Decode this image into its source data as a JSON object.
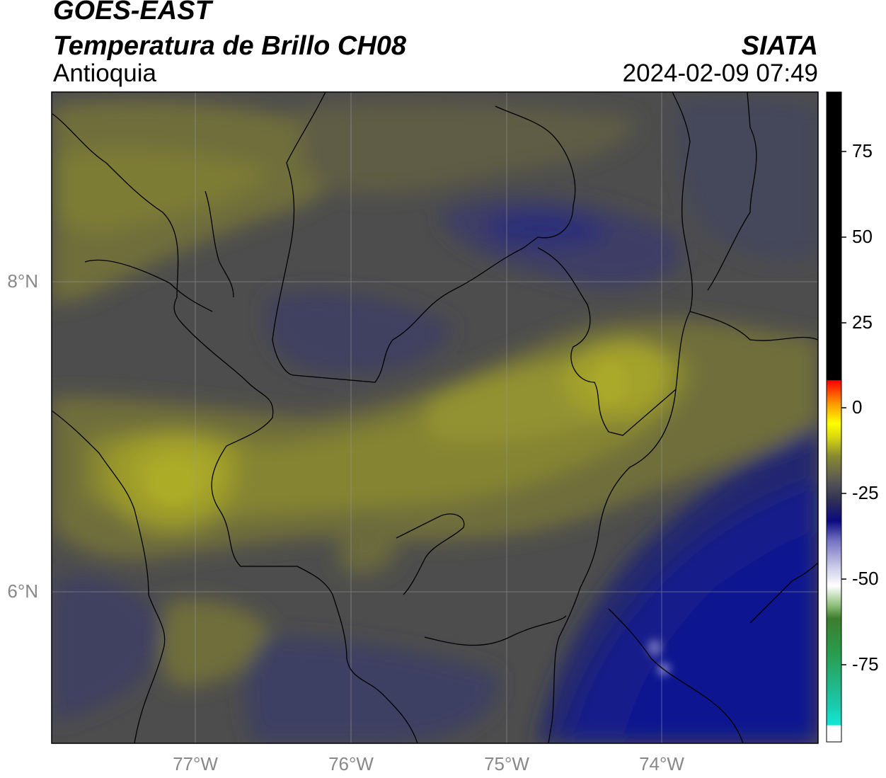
{
  "header": {
    "satellite": "GOES-EAST",
    "product": "Temperatura de Brillo CH08",
    "region": "Antioquia",
    "brand": "SIATA",
    "datetime": "2024-02-09 07:49"
  },
  "map": {
    "latitude_labels": [
      "8°N",
      "6°N"
    ],
    "longitude_labels": [
      "77°W",
      "76°W",
      "75°W",
      "74°W"
    ],
    "gridlines": true
  },
  "colorbar": {
    "tick_labels": [
      "75",
      "50",
      "25",
      "0",
      "-25",
      "-50",
      "-75"
    ],
    "colors": {
      "cold_cyan": "#12e8d6",
      "green": "#2e8a2e",
      "white": "#ffffff",
      "navy": "#0a0a80",
      "olive": "#8a8a30",
      "yellow": "#ffff00",
      "orange": "#ff8c00",
      "red": "#ff0000",
      "black": "#000000"
    }
  },
  "colors": {
    "background_gray": "#4d4d4d",
    "warm_olive": "#a3a22c",
    "mid_olive": "#6f6e3a",
    "blue_gray": "#3d3e66",
    "deep_navy": "#1c1f88"
  }
}
